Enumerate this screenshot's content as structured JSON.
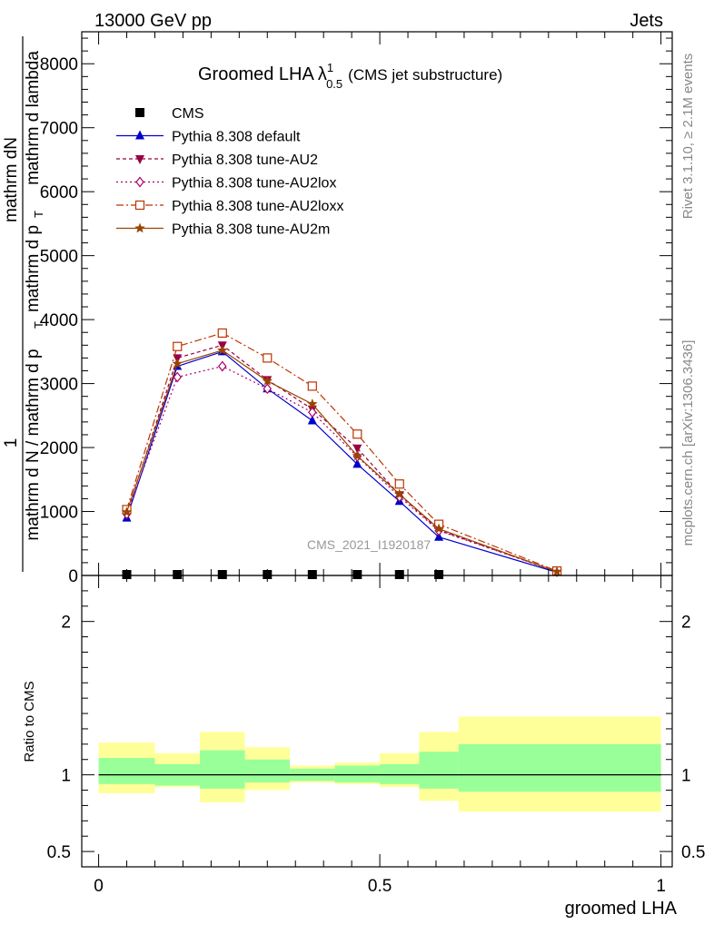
{
  "header": {
    "left": "13000 GeV pp",
    "right": "Jets"
  },
  "title": {
    "main": "Groomed LHA",
    "lambda": "λ",
    "sup": "1",
    "sub": "0.5",
    "suffix": "(CMS jet substructure)"
  },
  "ylabel": {
    "num": "mathrm dN",
    "den_line1": "mathrm d p",
    "den_sub": "T",
    "den_line2": "mathrm d lambda",
    "lead": "1",
    "lead_den": "mathrm d N / mathrm d p",
    "lead_sub": "T"
  },
  "side": {
    "top": "Rivet 3.1.10, ≥ 2.1M events",
    "bottom": "mcplots.cern.ch [arXiv:1306.3436]"
  },
  "watermark": "CMS_2021_I1920187",
  "xlabel": "groomed LHA",
  "ratio_ylabel": "Ratio to CMS",
  "legend": [
    "CMS",
    "Pythia 8.308 default",
    "Pythia 8.308 tune-AU2",
    "Pythia 8.308 tune-AU2lox",
    "Pythia 8.308 tune-AU2loxx",
    "Pythia 8.308 tune-AU2m"
  ],
  "chart_data": {
    "type": "line",
    "x": [
      0.05,
      0.14,
      0.22,
      0.3,
      0.38,
      0.46,
      0.535,
      0.605,
      0.815
    ],
    "x_edges": [
      0.0,
      0.1,
      0.18,
      0.26,
      0.34,
      0.42,
      0.5,
      0.57,
      0.64,
      1.0
    ],
    "xlim": [
      -0.03,
      1.02
    ],
    "ylim": [
      0,
      8500
    ],
    "yticks": [
      0,
      1000,
      2000,
      3000,
      4000,
      5000,
      6000,
      7000,
      8000
    ],
    "ytick_labels": [
      "0",
      "1000",
      "2000",
      "3000",
      "4000",
      "5000",
      "6000",
      "7000",
      "8000"
    ],
    "xticks": [
      0,
      0.5,
      1
    ],
    "xtick_labels": [
      "0",
      "0.5",
      "1"
    ],
    "series": [
      {
        "name": "CMS",
        "color": "#000000",
        "marker": "square",
        "dash": "",
        "x": [
          0.05,
          0.14,
          0.22,
          0.3,
          0.38,
          0.46,
          0.535,
          0.605
        ],
        "values": [
          2,
          2,
          2,
          2,
          2,
          2,
          2,
          2
        ]
      },
      {
        "name": "Pythia 8.308 default",
        "color": "#0000cc",
        "marker": "triangle-up",
        "dash": "",
        "values": [
          900,
          3270,
          3500,
          2920,
          2420,
          1740,
          1160,
          600,
          50
        ]
      },
      {
        "name": "Pythia 8.308 tune-AU2",
        "color": "#990044",
        "marker": "triangle-down",
        "dash": "4,3",
        "values": [
          960,
          3400,
          3600,
          3060,
          2600,
          1990,
          1260,
          710,
          60
        ]
      },
      {
        "name": "Pythia 8.308 tune-AU2lox",
        "color": "#aa0066",
        "marker": "diamond",
        "dash": "2,3",
        "values": [
          960,
          3100,
          3270,
          2920,
          2550,
          1860,
          1230,
          700,
          60
        ]
      },
      {
        "name": "Pythia 8.308 tune-AU2loxx",
        "color": "#bb3300",
        "marker": "square-open",
        "dash": "8,3,2,3",
        "values": [
          1030,
          3580,
          3790,
          3400,
          2960,
          2210,
          1430,
          800,
          70
        ]
      },
      {
        "name": "Pythia 8.308 tune-AU2m",
        "color": "#994400",
        "marker": "star",
        "dash": "",
        "values": [
          990,
          3310,
          3520,
          3040,
          2680,
          1870,
          1270,
          730,
          60
        ]
      }
    ],
    "ratio": {
      "ylabel": "Ratio to CMS",
      "ylim": [
        0.4,
        2.3
      ],
      "yticks": [
        0.5,
        1,
        2
      ],
      "ytick_labels": [
        "0.5",
        "1",
        "2"
      ],
      "band_inner": [
        [
          0.94,
          1.11
        ],
        [
          0.93,
          1.07
        ],
        [
          0.91,
          1.16
        ],
        [
          0.95,
          1.1
        ],
        [
          0.96,
          1.04
        ],
        [
          0.95,
          1.06
        ],
        [
          0.94,
          1.07
        ],
        [
          0.91,
          1.15
        ],
        [
          0.89,
          1.2
        ]
      ],
      "band_outer": [
        [
          0.88,
          1.21
        ],
        [
          0.92,
          1.14
        ],
        [
          0.82,
          1.28
        ],
        [
          0.9,
          1.18
        ],
        [
          0.95,
          1.06
        ],
        [
          0.94,
          1.08
        ],
        [
          0.92,
          1.14
        ],
        [
          0.83,
          1.28
        ],
        [
          0.76,
          1.38
        ]
      ],
      "band_colors": {
        "inner": "#99ff99",
        "outer": "#ffff99"
      }
    }
  }
}
